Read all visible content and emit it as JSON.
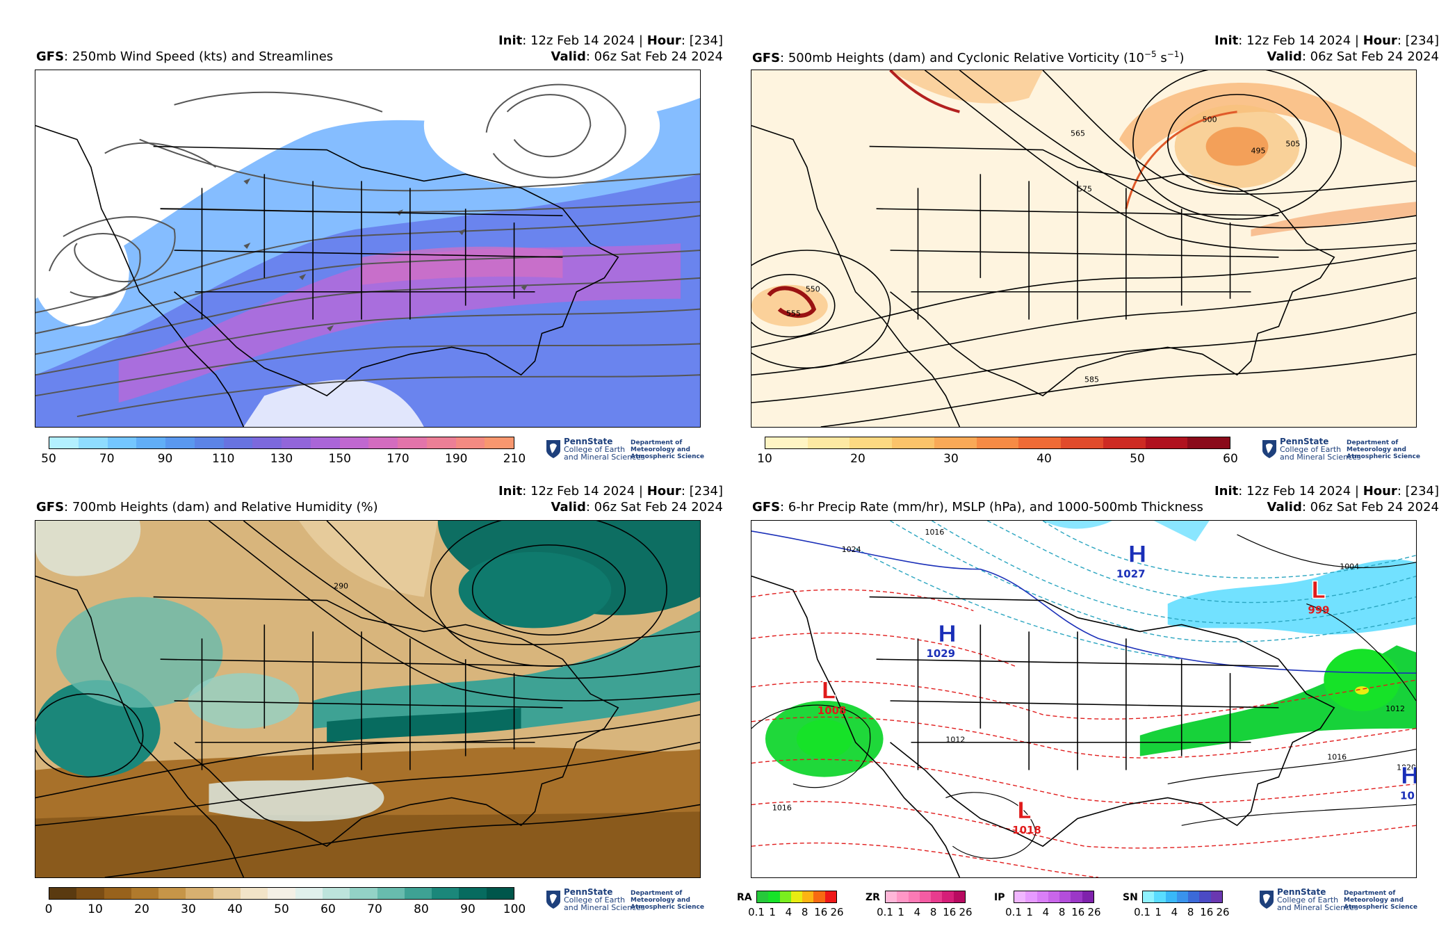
{
  "panels": [
    {
      "init_label": "Init",
      "init_value": ": 12z Feb 14 2024 | ",
      "hour_label": "Hour",
      "hour_value": ": [234]",
      "model": "GFS",
      "title": ": 250mb Wind Speed (kts) and Streamlines",
      "valid_label": "Valid",
      "valid_value": ": 06z Sat Feb 24 2024",
      "colorbar": {
        "ticks": [
          "50",
          "70",
          "90",
          "110",
          "130",
          "150",
          "170",
          "190",
          "210"
        ],
        "colors": [
          "#b3f0ff",
          "#8fdcff",
          "#74c6ff",
          "#61aef7",
          "#5a98ef",
          "#5c84e6",
          "#6873e0",
          "#7c69dc",
          "#9266da",
          "#aa66d8",
          "#c068d0",
          "#d36cbf",
          "#e274aa",
          "#ec7f96",
          "#f38a82",
          "#f8976f"
        ]
      }
    },
    {
      "init_label": "Init",
      "init_value": ": 12z Feb 14 2024 | ",
      "hour_label": "Hour",
      "hour_value": ": [234]",
      "model": "GFS",
      "title": ": 500mb Heights (dam) and Cyclonic Relative Vorticity (10",
      "title_sup1": "−5",
      "title_mid": " s",
      "title_sup2": "−1",
      "title_end": ")",
      "valid_label": "Valid",
      "valid_value": ": 06z Sat Feb 24 2024",
      "contour_labels": [
        "555",
        "550",
        "585",
        "500",
        "495",
        "505",
        "565",
        "575"
      ],
      "colorbar": {
        "ticks": [
          "10",
          "20",
          "30",
          "40",
          "50",
          "60"
        ],
        "colors": [
          "#fff5c4",
          "#fde9a3",
          "#fcd982",
          "#fbc36a",
          "#f9a957",
          "#f68b45",
          "#ef6b35",
          "#e14b2b",
          "#cd2b23",
          "#b0121f",
          "#8a0a1a"
        ]
      }
    },
    {
      "init_label": "Init",
      "init_value": ": 12z Feb 14 2024 | ",
      "hour_label": "Hour",
      "hour_value": ": [234]",
      "model": "GFS",
      "title": ": 700mb Heights (dam) and Relative Humidity (%)",
      "valid_label": "Valid",
      "valid_value": ": 06z Sat Feb 24 2024",
      "contour_labels": [
        "290"
      ],
      "colorbar": {
        "ticks": [
          "0",
          "10",
          "20",
          "30",
          "40",
          "50",
          "60",
          "70",
          "80",
          "90",
          "100"
        ],
        "colors": [
          "#5a3a10",
          "#7b4d14",
          "#98621c",
          "#b07a2c",
          "#c69548",
          "#d8b070",
          "#e6cb9b",
          "#f2e4c8",
          "#f4f0e6",
          "#e0f0ec",
          "#bde4dc",
          "#93d2c6",
          "#68bcae",
          "#3ea294",
          "#1b877a",
          "#076b5f",
          "#00564b"
        ]
      }
    },
    {
      "init_label": "Init",
      "init_value": ": 12z Feb 14 2024 | ",
      "hour_label": "Hour",
      "hour_value": ": [234]",
      "model": "GFS",
      "title": ": 6-hr Precip Rate (mm/hr), MSLP (hPa), and 1000-500mb Thickness",
      "valid_label": "Valid",
      "valid_value": ": 06z Sat Feb 24 2024",
      "pressure_centers": [
        {
          "type": "H",
          "value": "1027",
          "color": "#1a2fb8"
        },
        {
          "type": "H",
          "value": "1029",
          "color": "#1a2fb8"
        },
        {
          "type": "L",
          "value": "999",
          "color": "#e01b1b"
        },
        {
          "type": "L",
          "value": "1008",
          "color": "#e01b1b"
        },
        {
          "type": "L",
          "value": "1018",
          "color": "#e01b1b"
        },
        {
          "type": "H",
          "value": "10",
          "color": "#1a2fb8"
        }
      ],
      "contour_labels": [
        "1016",
        "1024",
        "1004",
        "1012",
        "1016",
        "1020",
        "1012",
        "1016"
      ],
      "legends": [
        {
          "label": "RA",
          "ticks": [
            "0.1",
            "1",
            "4",
            "8",
            "16",
            "26"
          ],
          "colors": [
            "#26c93a",
            "#16e228",
            "#7aee1f",
            "#e8ec12",
            "#fcb413",
            "#f76a12",
            "#ef1818"
          ]
        },
        {
          "label": "ZR",
          "ticks": [
            "0.1",
            "1",
            "4",
            "8",
            "16",
            "26"
          ],
          "colors": [
            "#ffb6d8",
            "#ff97c6",
            "#fb7ab5",
            "#f45ca3",
            "#e83c8e",
            "#d51e78",
            "#b80a60"
          ]
        },
        {
          "label": "IP",
          "ticks": [
            "0.1",
            "1",
            "4",
            "8",
            "16",
            "26"
          ],
          "colors": [
            "#f0b6ff",
            "#e69aff",
            "#d97ff7",
            "#c966ea",
            "#b34edb",
            "#9b38c7",
            "#7f22ac"
          ]
        },
        {
          "label": "SN",
          "ticks": [
            "0.1",
            "1",
            "4",
            "8",
            "16",
            "26"
          ],
          "colors": [
            "#8ff2ff",
            "#59dcff",
            "#39b8f8",
            "#3993ec",
            "#3b6ad8",
            "#4b4ac4",
            "#6a38b0"
          ]
        }
      ]
    }
  ],
  "logo": {
    "name": "PennState",
    "line1": "College of Earth",
    "line2": "and Mineral Sciences",
    "dept1": "Department of",
    "dept2": "Meteorology and",
    "dept3": "Atmospheric Science"
  },
  "colors": {
    "panel1_bg_wind": "#6b8ff0",
    "panel2_bg": "#fff4d8",
    "panel3_brown": "#a8712a",
    "panel3_teal": "#0d6e62",
    "high_blue": "#1a2fb8",
    "low_red": "#e01b1b"
  }
}
